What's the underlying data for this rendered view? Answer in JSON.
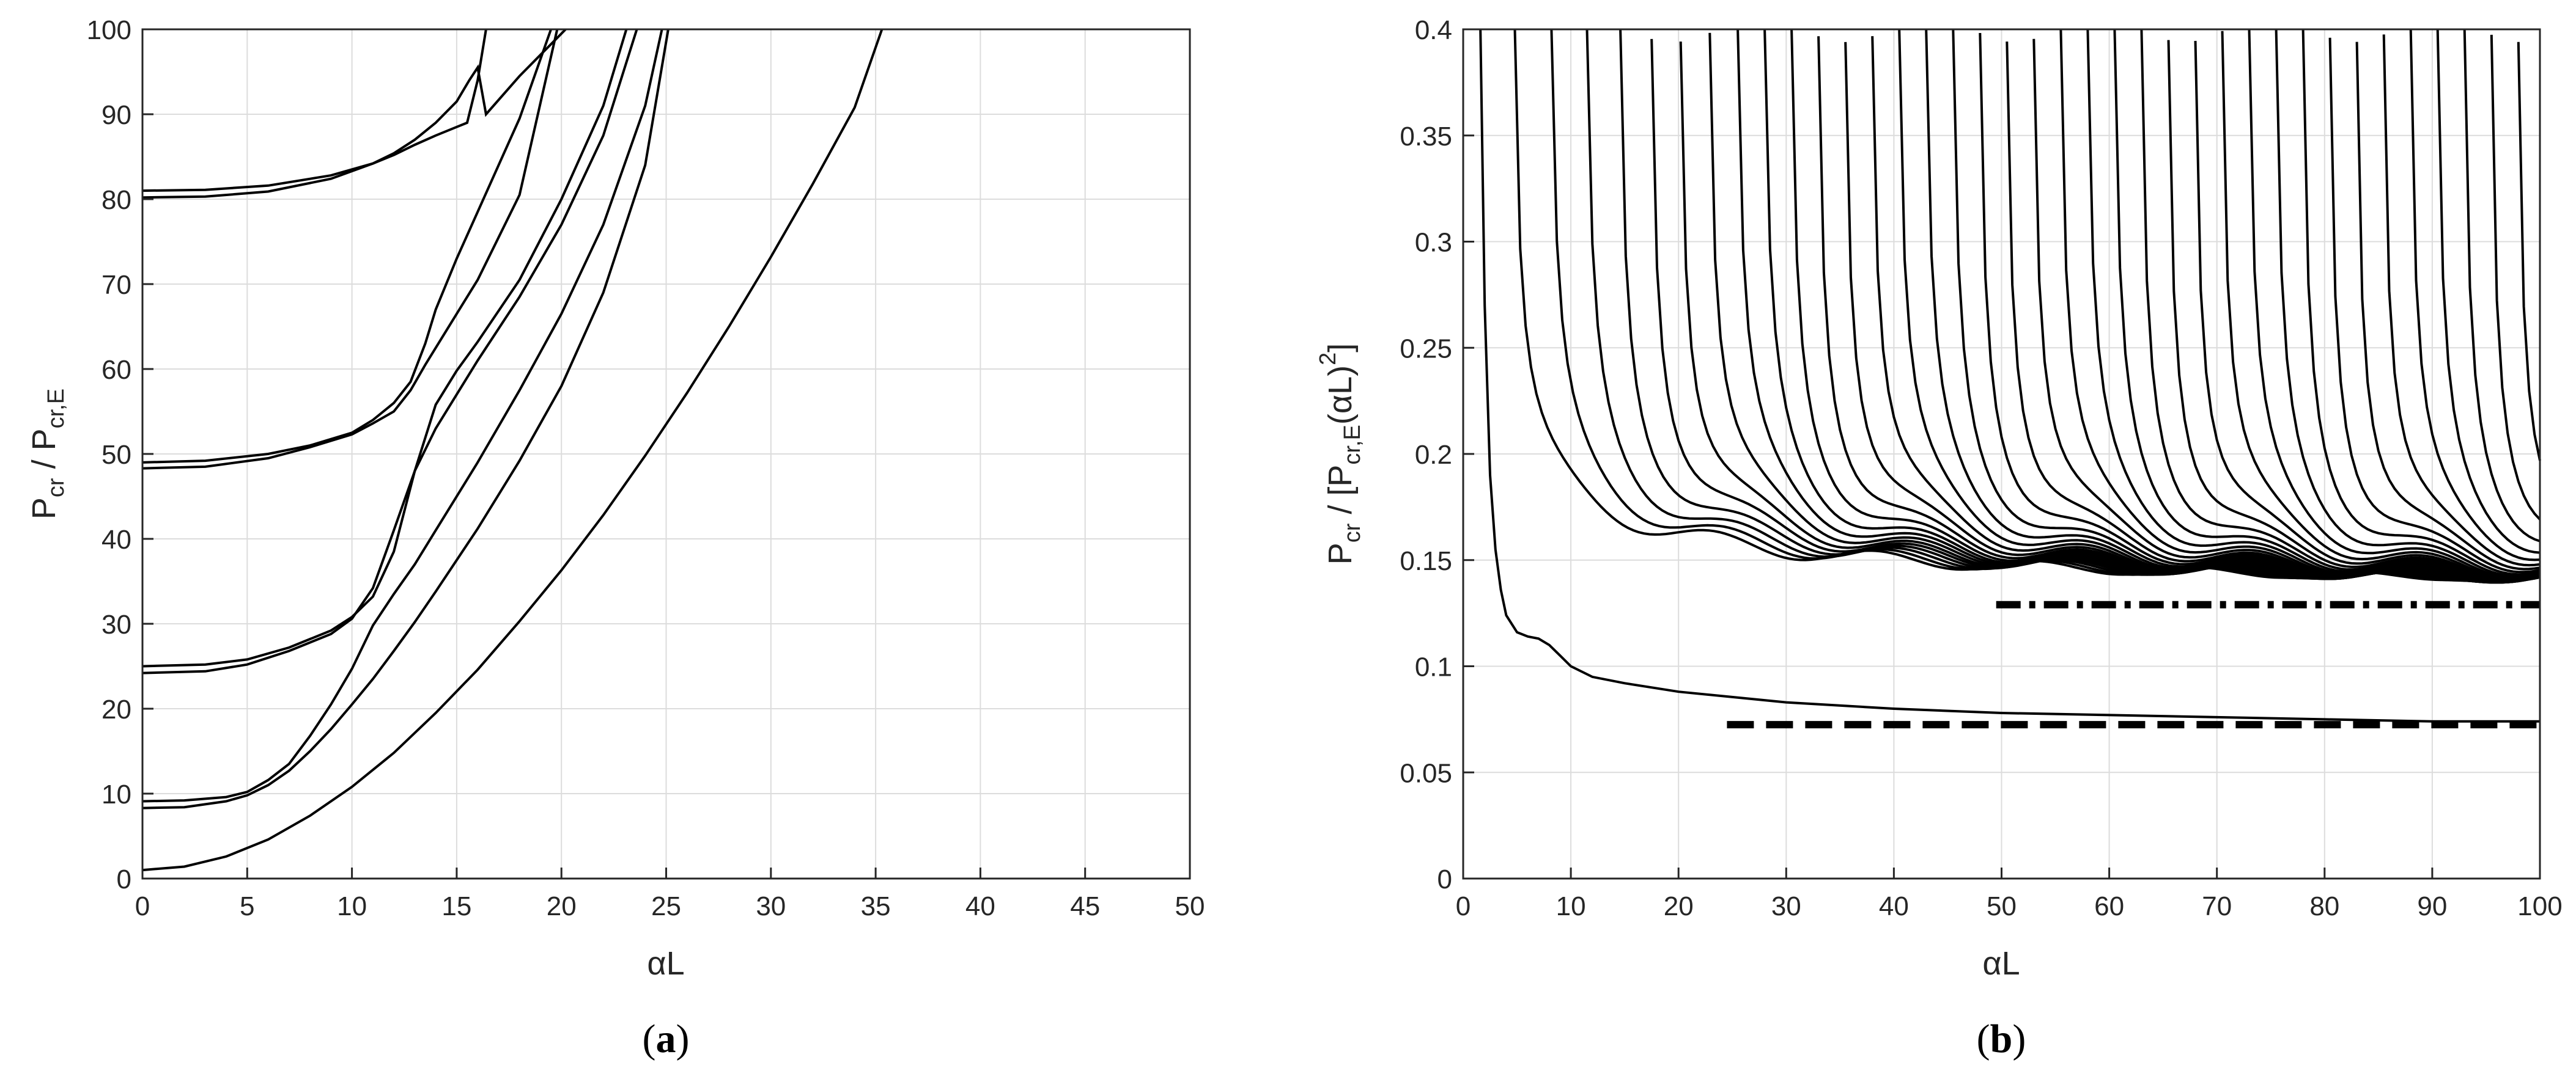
{
  "figure": {
    "panel_a_label": "a",
    "panel_b_label": "b"
  },
  "chart_data": [
    {
      "panel": "a",
      "type": "line",
      "xlabel": "αL",
      "ylabel": {
        "main": "P",
        "sub1": "cr",
        "mid": " / P",
        "sub2": "cr,E"
      },
      "xlim": [
        0,
        50
      ],
      "ylim": [
        0,
        100
      ],
      "xticks": [
        0,
        5,
        10,
        15,
        20,
        25,
        30,
        35,
        40,
        45,
        50
      ],
      "yticks": [
        0,
        10,
        20,
        30,
        40,
        50,
        60,
        70,
        80,
        90,
        100
      ],
      "grid": true,
      "series": [
        {
          "x": [
            0,
            2,
            4,
            6,
            8,
            10,
            12,
            14,
            16,
            18,
            20,
            22,
            24,
            26,
            28,
            30,
            32,
            34,
            35.3
          ],
          "y": [
            1,
            1.4,
            2.6,
            4.6,
            7.4,
            10.8,
            14.8,
            19.5,
            24.6,
            30.3,
            36.3,
            42.8,
            49.8,
            57.2,
            65.0,
            73.2,
            81.8,
            90.8,
            100
          ]
        },
        {
          "x": [
            0,
            2,
            4,
            5,
            6,
            7,
            8,
            9,
            10,
            11,
            12,
            13,
            14,
            16,
            18,
            20,
            22,
            24,
            25.1
          ],
          "y": [
            8.3,
            8.4,
            9.1,
            9.8,
            11.0,
            12.7,
            15.0,
            17.6,
            20.5,
            23.5,
            26.8,
            30.2,
            33.8,
            41.2,
            49.2,
            58.0,
            69.0,
            84.0,
            100
          ]
        },
        {
          "x": [
            0,
            2,
            4,
            5,
            6,
            7,
            8,
            9,
            10,
            11,
            12,
            13,
            14,
            16,
            18,
            20,
            22,
            24,
            24.8
          ],
          "y": [
            9.1,
            9.2,
            9.6,
            10.2,
            11.6,
            13.5,
            16.8,
            20.5,
            24.7,
            29.8,
            33.5,
            37.0,
            41.0,
            49.0,
            57.5,
            66.5,
            77.0,
            91.0,
            100
          ]
        },
        {
          "x": [
            0,
            3,
            5,
            7,
            9,
            10,
            11,
            12,
            13,
            14,
            15,
            16,
            18,
            20,
            22,
            23.6
          ],
          "y": [
            24.2,
            24.4,
            25.2,
            26.8,
            28.8,
            30.6,
            34.2,
            41.0,
            48.0,
            53.0,
            57.0,
            61.0,
            68.5,
            77.0,
            87.5,
            100
          ]
        },
        {
          "x": [
            0,
            3,
            5,
            7,
            9,
            10,
            11,
            12,
            13,
            14,
            15,
            16,
            18,
            20,
            22,
            23.1
          ],
          "y": [
            25.0,
            25.2,
            25.8,
            27.2,
            29.2,
            30.8,
            33.2,
            38.5,
            48.0,
            55.8,
            59.8,
            63.2,
            70.5,
            80.0,
            91.0,
            100
          ]
        },
        {
          "x": [
            0,
            3,
            6,
            8,
            10,
            11,
            12,
            12.8,
            13.5,
            14.5,
            16,
            18,
            19.8
          ],
          "y": [
            48.3,
            48.5,
            49.5,
            50.8,
            52.3,
            53.6,
            55.0,
            57.5,
            60.5,
            64.5,
            70.5,
            80.5,
            100
          ]
        },
        {
          "x": [
            0,
            3,
            6,
            8,
            10,
            11,
            12,
            12.8,
            13.5,
            14.0,
            15,
            16,
            17,
            18,
            19.5
          ],
          "y": [
            49.0,
            49.2,
            50.0,
            51.0,
            52.5,
            54.0,
            56.0,
            58.5,
            63.0,
            67.0,
            73.0,
            78.5,
            84.0,
            89.5,
            100
          ]
        },
        {
          "x": [
            0,
            3,
            6,
            9,
            11,
            12,
            13,
            14,
            15,
            15.5,
            16.0,
            16.4
          ],
          "y": [
            80.2,
            80.3,
            80.9,
            82.4,
            84.2,
            85.2,
            86.4,
            87.5,
            88.5,
            89.0,
            94.0,
            100
          ]
        },
        {
          "x": [
            0,
            3,
            6,
            9,
            11,
            12,
            13,
            14,
            15,
            15.6,
            16.0,
            16.4,
            18,
            20.2
          ],
          "y": [
            81.0,
            81.1,
            81.6,
            82.8,
            84.2,
            85.4,
            87.0,
            89.0,
            91.5,
            94.0,
            95.5,
            90.0,
            94.5,
            100
          ]
        }
      ]
    },
    {
      "panel": "b",
      "type": "line",
      "xlabel": "αL",
      "ylabel": {
        "main": "P",
        "sub1": "cr",
        "mid": " / [P",
        "sub2": "cr,E",
        "tail": "(αL)",
        "sup": "2",
        "close": "]"
      },
      "xlim": [
        0,
        100
      ],
      "ylim": [
        0,
        0.4
      ],
      "xticks": [
        0,
        10,
        20,
        30,
        40,
        50,
        60,
        70,
        80,
        90,
        100
      ],
      "yticks": [
        0,
        0.05,
        0.1,
        0.15,
        0.2,
        0.25,
        0.3,
        0.35,
        0.4
      ],
      "grid": true,
      "series": [
        {
          "name": "",
          "style": "solid",
          "x": [
            1.6,
            2.0,
            2.5,
            3.0,
            3.5,
            4.0,
            5.0,
            6.0,
            7.0,
            8.0,
            9.0,
            10,
            12,
            15,
            20,
            30,
            40,
            50,
            60,
            70,
            80,
            90,
            100
          ],
          "y": [
            0.4,
            0.27,
            0.19,
            0.155,
            0.136,
            0.124,
            0.116,
            0.114,
            0.113,
            0.11,
            0.105,
            0.1,
            0.095,
            0.092,
            0.088,
            0.083,
            0.08,
            0.078,
            0.077,
            0.076,
            0.075,
            0.074,
            0.074
          ]
        },
        {
          "name": "",
          "style": "dashed",
          "x": [
            24.5,
            100
          ],
          "y": [
            0.0725,
            0.0725
          ]
        },
        {
          "name": "",
          "style": "dashdot",
          "x": [
            49.5,
            100
          ],
          "y": [
            0.129,
            0.129
          ]
        }
      ],
      "family": {
        "description_free": true,
        "asymptote": 0.129,
        "vertical_lines_start_x": [
          4.8,
          8.2,
          11.5,
          14.6,
          17.5,
          20.2,
          22.9,
          25.5,
          28.0,
          30.5,
          33.0,
          35.5,
          38.0,
          40.5,
          43.0,
          45.5,
          48.0,
          50.5,
          53.0,
          55.5,
          58.0,
          60.5,
          63.0,
          65.5,
          68.0,
          70.5,
          73.0,
          75.5,
          78.0,
          80.5,
          83.0,
          85.5,
          88.0,
          90.5,
          93.0,
          95.5,
          98.0
        ]
      }
    }
  ]
}
